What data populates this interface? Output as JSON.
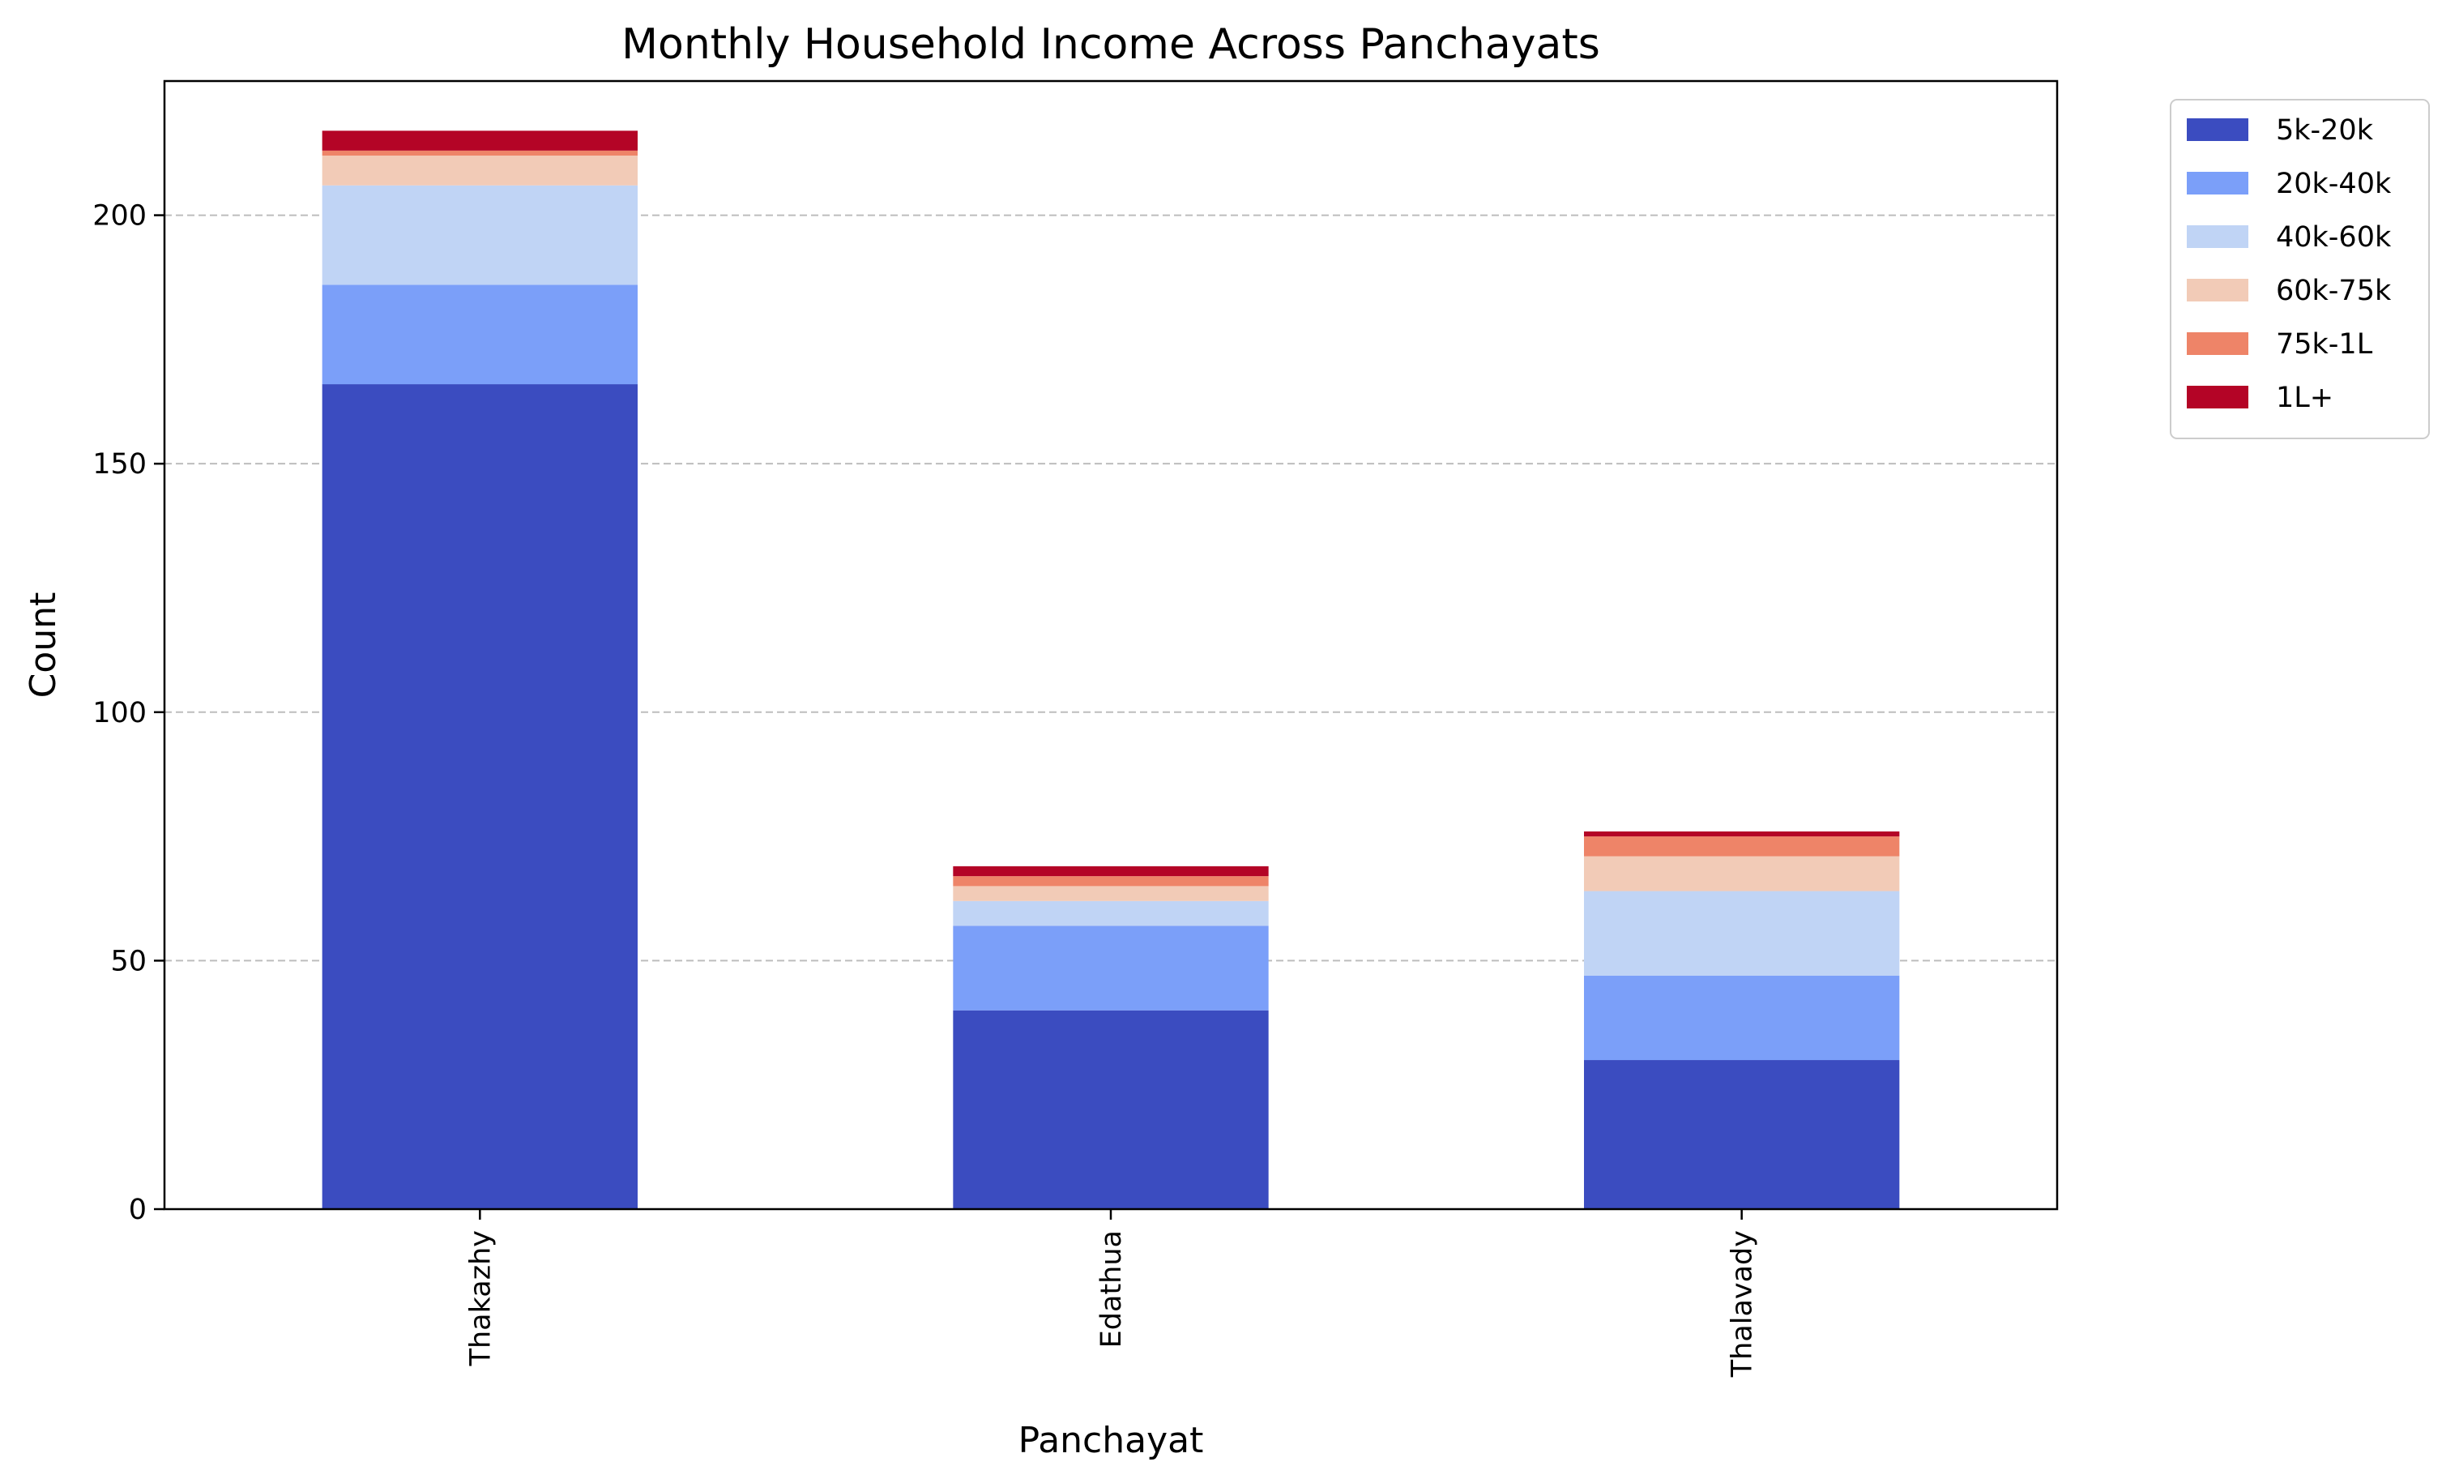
{
  "chart_data": {
    "type": "bar",
    "stacked": true,
    "title": "Monthly Household Income Across Panchayats",
    "xlabel": "Panchayat",
    "ylabel": "Count",
    "ylim": [
      0,
      227
    ],
    "yticks": [
      0,
      50,
      100,
      150,
      200
    ],
    "grid": "y-dashed",
    "legend_position": "outside-top-right",
    "categories": [
      "Thakazhy",
      "Edathua",
      "Thalavady"
    ],
    "series": [
      {
        "name": "5k-20k",
        "color": "#3b4cc0",
        "values": [
          166,
          40,
          30
        ]
      },
      {
        "name": "20k-40k",
        "color": "#7b9ff9",
        "values": [
          20,
          17,
          17
        ]
      },
      {
        "name": "40k-60k",
        "color": "#c0d4f5",
        "values": [
          20,
          5,
          17
        ]
      },
      {
        "name": "60k-75k",
        "color": "#f2cbb7",
        "values": [
          6,
          3,
          7
        ]
      },
      {
        "name": "75k-1L",
        "color": "#ee8468",
        "values": [
          1,
          2,
          4
        ]
      },
      {
        "name": "1L+",
        "color": "#b40426",
        "values": [
          4,
          2,
          1
        ]
      }
    ]
  }
}
